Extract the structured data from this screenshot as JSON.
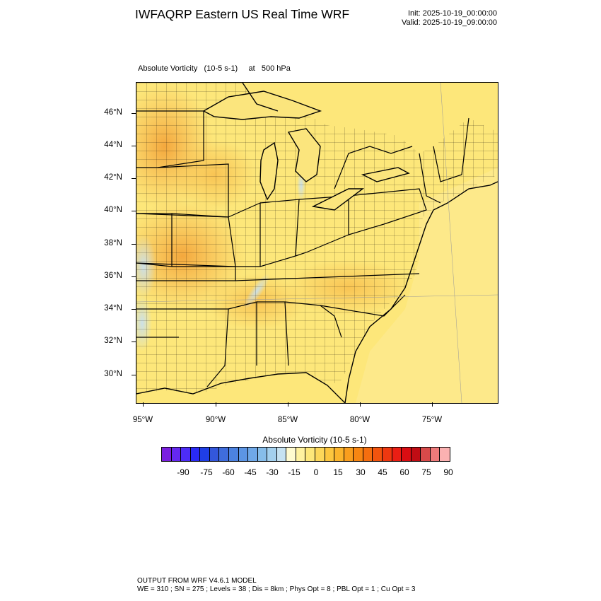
{
  "header": {
    "title": "IWFAQRP Eastern US Real Time WRF",
    "init": "Init: 2025-10-19_00:00:00",
    "valid": "Valid: 2025-10-19_09:00:00"
  },
  "map": {
    "subtitle": "Absolute Vorticity   (10-5 s-1)     at   500 hPa",
    "lat_labels": [
      "46°N",
      "44°N",
      "42°N",
      "40°N",
      "38°N",
      "36°N",
      "34°N",
      "32°N",
      "30°N"
    ],
    "lon_labels": [
      "95°W",
      "90°W",
      "85°W",
      "80°W",
      "75°W"
    ],
    "field_base_color": "#fde77a",
    "land_border_color": "#000000"
  },
  "colorbar": {
    "title": "Absolute Vorticity  (10-5 s-1)",
    "labels": [
      "-90",
      "-75",
      "-60",
      "-45",
      "-30",
      "-15",
      "0",
      "15",
      "30",
      "45",
      "60",
      "75",
      "90"
    ],
    "colors": [
      "#7a1fe0",
      "#6528f0",
      "#4d2cf7",
      "#2a2af5",
      "#1f3ee6",
      "#3357dc",
      "#3f6ddc",
      "#4c82e0",
      "#5c95e4",
      "#6fa8e8",
      "#86bdea",
      "#a3d0ee",
      "#c6e2f1",
      "#fffbd0",
      "#fff2a0",
      "#fde77a",
      "#fcd75a",
      "#fcc63f",
      "#fbb42c",
      "#f99e1e",
      "#f78612",
      "#f56e0f",
      "#f2540e",
      "#ee3810",
      "#ea1e14",
      "#d90d12",
      "#c00c14",
      "#d84a4a",
      "#ee7a7a",
      "#fbb1b1"
    ]
  },
  "footer": {
    "line1": "OUTPUT FROM WRF V4.6.1 MODEL",
    "line2": "WE = 310 ; SN = 275 ; Levels = 38 ; Dis = 8km ; Phys Opt = 8 ; PBL Opt = 1 ; Cu Opt = 3"
  }
}
